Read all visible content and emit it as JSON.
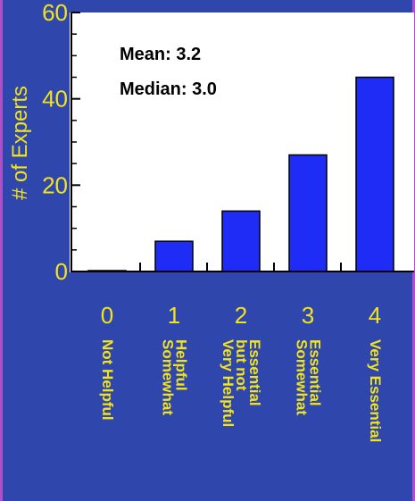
{
  "chart_data": {
    "type": "bar",
    "categories": [
      "0",
      "1",
      "2",
      "3",
      "4"
    ],
    "category_descriptions": [
      [
        "Not Helpful"
      ],
      [
        "Somewhat",
        "Helpful"
      ],
      [
        "Very Helpful",
        "but not",
        "Essential"
      ],
      [
        "Somewhat",
        "Essential"
      ],
      [
        "Very Essential"
      ]
    ],
    "values": [
      0,
      7,
      14,
      27,
      45
    ],
    "ylabel": "# of Experts",
    "ylim": [
      0,
      60
    ],
    "yticks": [
      0,
      20,
      40,
      60
    ],
    "annotations": [
      "Mean:  3.2",
      "Median:  3.0"
    ],
    "colors": {
      "background": "#2f46ad",
      "plot_bg": "#ffffff",
      "bar": "#1f2cf5",
      "label": "#f2e41a",
      "border": "#b050c8"
    }
  }
}
